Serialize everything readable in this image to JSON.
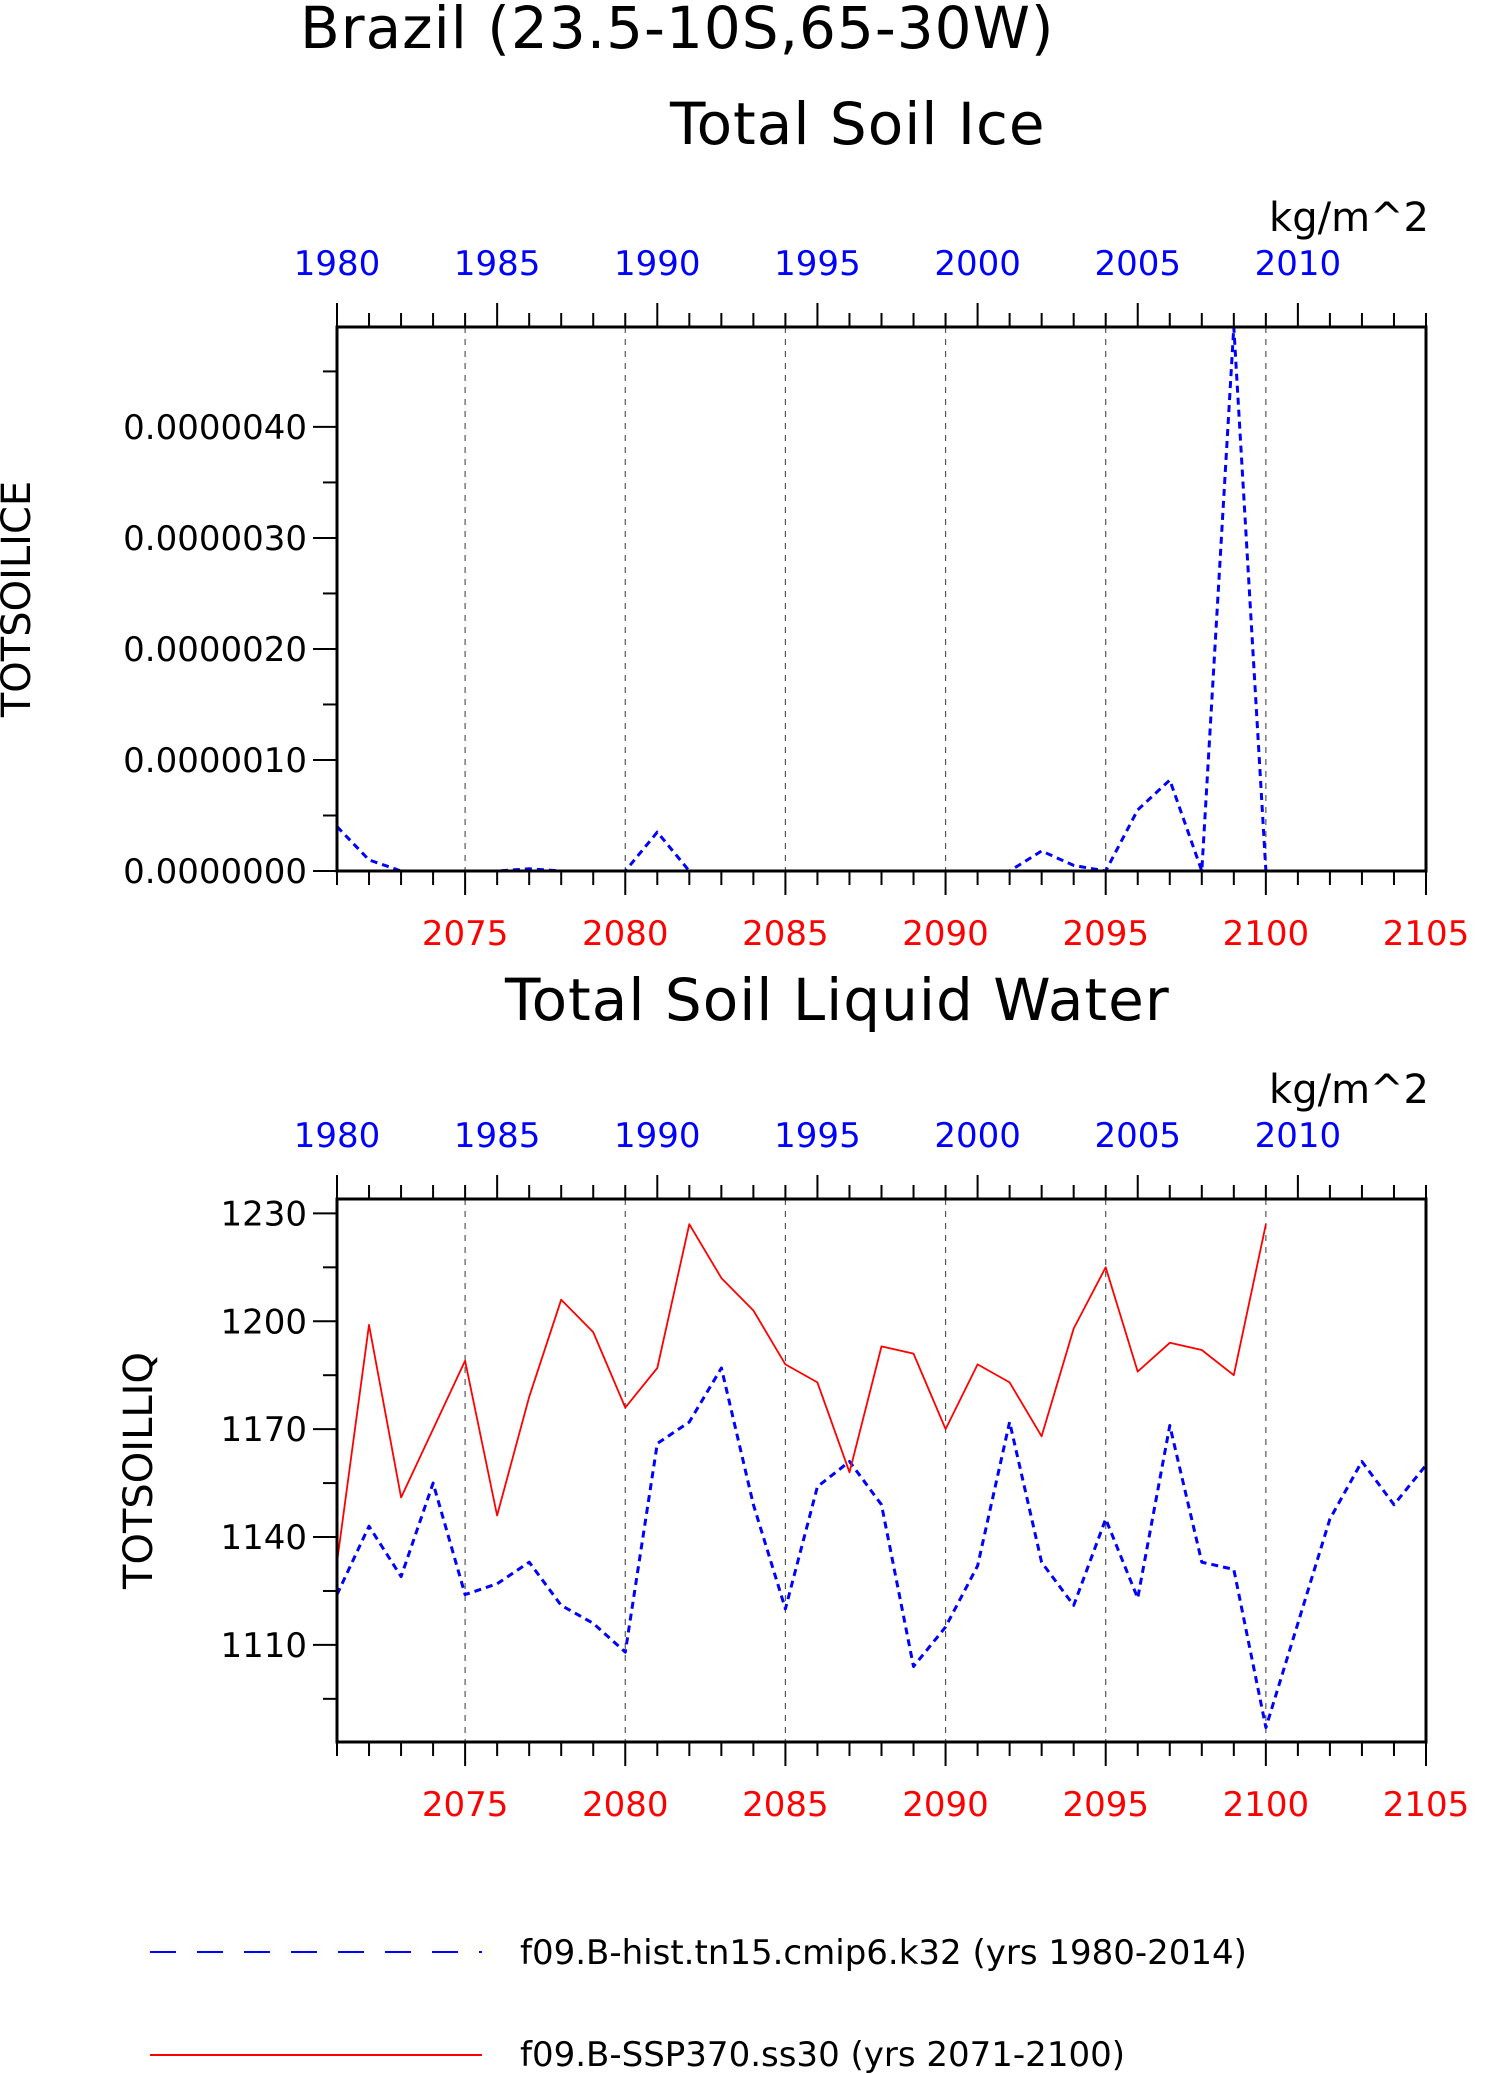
{
  "header": {
    "region_title": "Brazil (23.5-10S,65-30W)"
  },
  "colors": {
    "hist": "#0000ff",
    "ssp": "#ff0000",
    "axis": "#000000",
    "grid": "#555555"
  },
  "chart_data": [
    {
      "type": "line",
      "title": "Total Soil Ice",
      "ylabel": "TOTSOILICE",
      "units": "kg/m^2",
      "ylim": [
        0,
        4.9e-06
      ],
      "yticks": [
        0,
        1e-06,
        2e-06,
        3e-06,
        4e-06
      ],
      "ytick_labels": [
        "0.0000000",
        "0.0000010",
        "0.0000020",
        "0.0000030",
        "0.0000040"
      ],
      "top_axis": {
        "color": "blue",
        "range": [
          1980,
          2014
        ],
        "tick_labels": [
          "1980",
          "1985",
          "1990",
          "1995",
          "2000",
          "2005",
          "2010"
        ]
      },
      "bottom_axis": {
        "color": "red",
        "range": [
          2071,
          2105
        ],
        "tick_labels": [
          "2075",
          "2080",
          "2085",
          "2090",
          "2095",
          "2100",
          "2105"
        ]
      },
      "grid": "dashed vertical lines at bottom-axis major ticks",
      "series": [
        {
          "name": "f09.B-hist.tn15.cmip6.k32 (yrs 1980-2014)",
          "style": "dashed",
          "x": [
            1980,
            1981,
            1982,
            1983,
            1984,
            1985,
            1986,
            1987,
            1988,
            1989,
            1990,
            1991,
            1992,
            1993,
            1994,
            1995,
            1996,
            1997,
            1998,
            1999,
            2000,
            2001,
            2002,
            2003,
            2004,
            2005,
            2006,
            2007,
            2008,
            2009,
            2010,
            2011,
            2012,
            2013,
            2014
          ],
          "values": [
            4e-07,
            1e-07,
            0,
            0,
            0,
            0,
            2e-08,
            0,
            0,
            0,
            3.5e-07,
            0,
            0,
            0,
            0,
            0,
            0,
            0,
            0,
            0,
            0,
            0,
            1.8e-07,
            5e-08,
            0,
            5.5e-07,
            8.2e-07,
            0,
            4.9e-06,
            0,
            0,
            0,
            0,
            0,
            0
          ]
        },
        {
          "name": "f09.B-SSP370.ss30 (yrs 2071-2100)",
          "style": "solid",
          "x": [
            2071,
            2072,
            2073,
            2074,
            2075,
            2076,
            2077,
            2078,
            2079,
            2080,
            2081,
            2082,
            2083,
            2084,
            2085,
            2086,
            2087,
            2088,
            2089,
            2090,
            2091,
            2092,
            2093,
            2094,
            2095,
            2096,
            2097,
            2098,
            2099,
            2100
          ],
          "values": [
            0,
            0,
            0,
            0,
            0,
            0,
            0,
            0,
            0,
            0,
            0,
            0,
            0,
            0,
            0,
            0,
            0,
            0,
            0,
            0,
            0,
            0,
            0,
            0,
            0,
            0,
            0,
            0,
            0,
            0
          ]
        }
      ]
    },
    {
      "type": "line",
      "title": "Total Soil Liquid Water",
      "ylabel": "TOTSOILLIQ",
      "units": "kg/m^2",
      "ylim": [
        1083,
        1234
      ],
      "yticks": [
        1110,
        1140,
        1170,
        1200,
        1230
      ],
      "ytick_labels": [
        "1110",
        "1140",
        "1170",
        "1200",
        "1230"
      ],
      "top_axis": {
        "color": "blue",
        "range": [
          1980,
          2014
        ],
        "tick_labels": [
          "1980",
          "1985",
          "1990",
          "1995",
          "2000",
          "2005",
          "2010"
        ]
      },
      "bottom_axis": {
        "color": "red",
        "range": [
          2071,
          2105
        ],
        "tick_labels": [
          "2075",
          "2080",
          "2085",
          "2090",
          "2095",
          "2100",
          "2105"
        ]
      },
      "grid": "dashed vertical lines at bottom-axis major ticks",
      "series": [
        {
          "name": "f09.B-hist.tn15.cmip6.k32 (yrs 1980-2014)",
          "style": "dashed",
          "x": [
            1980,
            1981,
            1982,
            1983,
            1984,
            1985,
            1986,
            1987,
            1988,
            1989,
            1990,
            1991,
            1992,
            1993,
            1994,
            1995,
            1996,
            1997,
            1998,
            1999,
            2000,
            2001,
            2002,
            2003,
            2004,
            2005,
            2006,
            2007,
            2008,
            2009,
            2010,
            2011,
            2012,
            2013,
            2014
          ],
          "values": [
            1124,
            1143,
            1129,
            1155,
            1124,
            1127,
            1133,
            1121,
            1116,
            1108,
            1166,
            1172,
            1187,
            1149,
            1120,
            1154,
            1161,
            1149,
            1104,
            1115,
            1132,
            1172,
            1133,
            1121,
            1145,
            1123,
            1171,
            1133,
            1131,
            1087,
            1116,
            1145,
            1161,
            1149,
            1160
          ]
        },
        {
          "name": "f09.B-SSP370.ss30 (yrs 2071-2100)",
          "style": "solid",
          "x": [
            2071,
            2072,
            2073,
            2074,
            2075,
            2076,
            2077,
            2078,
            2079,
            2080,
            2081,
            2082,
            2083,
            2084,
            2085,
            2086,
            2087,
            2088,
            2089,
            2090,
            2091,
            2092,
            2093,
            2094,
            2095,
            2096,
            2097,
            2098,
            2099,
            2100
          ],
          "values": [
            1133,
            1199,
            1151,
            1170,
            1189,
            1146,
            1179,
            1206,
            1197,
            1176,
            1187,
            1227,
            1212,
            1203,
            1188,
            1183,
            1158,
            1193,
            1191,
            1170,
            1188,
            1183,
            1168,
            1198,
            1215,
            1186,
            1194,
            1192,
            1185,
            1227
          ]
        }
      ]
    }
  ],
  "legend": {
    "placement": "bottom",
    "items": [
      {
        "label": "f09.B-hist.tn15.cmip6.k32 (yrs 1980-2014)",
        "style": "dashed",
        "color": "blue"
      },
      {
        "label": "f09.B-SSP370.ss30 (yrs 2071-2100)",
        "style": "solid",
        "color": "red"
      }
    ]
  }
}
